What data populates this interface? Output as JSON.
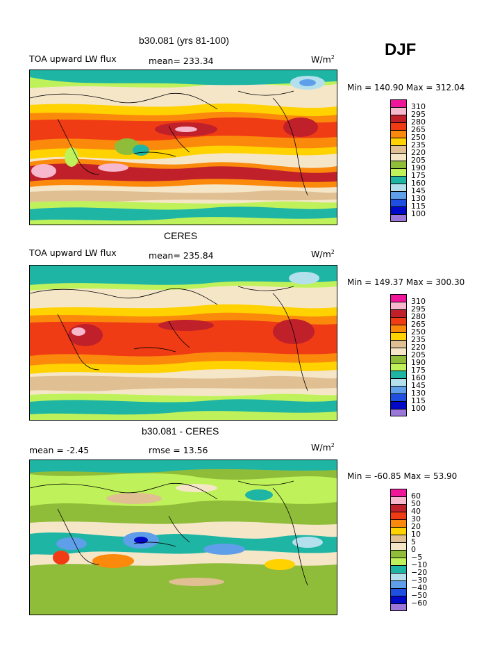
{
  "season": "DJF",
  "panels": [
    {
      "title": "b30.081 (yrs 81-100)",
      "left_label": "TOA upward LW flux",
      "stat_label": "mean= 233.34",
      "units": "W/m",
      "units_sup": "2",
      "minmax": "Min = 140.90 Max = 312.04",
      "colorbar": [
        "310",
        "295",
        "280",
        "265",
        "250",
        "235",
        "220",
        "205",
        "190",
        "175",
        "160",
        "145",
        "130",
        "115",
        "100"
      ]
    },
    {
      "title": "CERES",
      "left_label": "TOA upward LW flux",
      "stat_label": "mean= 235.84",
      "units": "W/m",
      "units_sup": "2",
      "minmax": "Min = 149.37 Max = 300.30",
      "colorbar": [
        "310",
        "295",
        "280",
        "265",
        "250",
        "235",
        "220",
        "205",
        "190",
        "175",
        "160",
        "145",
        "130",
        "115",
        "100"
      ]
    },
    {
      "title": "b30.081 - CERES",
      "left_label": "mean =   -2.45",
      "stat_label": "rmse =   13.56",
      "units": "W/m",
      "units_sup": "2",
      "minmax": "Min = -60.85 Max =   53.90",
      "colorbar": [
        "60",
        "50",
        "40",
        "30",
        "20",
        "10",
        "5",
        "0",
        "−5",
        "−10",
        "−20",
        "−30",
        "−40",
        "−50",
        "−60"
      ]
    }
  ],
  "colors": [
    "#f0169a",
    "#f7b7cc",
    "#c0202a",
    "#f03c14",
    "#fb8a0c",
    "#ffd200",
    "#e0bf92",
    "#f5e6c8",
    "#8fbd3a",
    "#bff25a",
    "#1fb5a5",
    "#b3e0ec",
    "#5f9ee8",
    "#1f4fe0",
    "#0008c8",
    "#9a77d9"
  ]
}
